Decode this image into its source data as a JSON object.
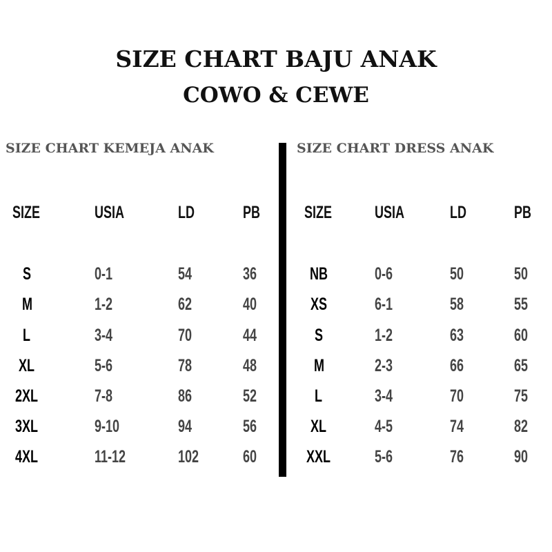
{
  "title_line1": "SIZE CHART BAJU ANAK",
  "title_line2": "COWO & CEWE",
  "tables": [
    {
      "title": "SIZE CHART KEMEJA ANAK",
      "headers": [
        "SIZE",
        "USIA",
        "LD",
        "PB"
      ],
      "rows": [
        [
          "S",
          "0-1",
          "54",
          "36"
        ],
        [
          "M",
          "1-2",
          "62",
          "40"
        ],
        [
          "L",
          "3-4",
          "70",
          "44"
        ],
        [
          "XL",
          "5-6",
          "78",
          "48"
        ],
        [
          "2XL",
          "7-8",
          "86",
          "52"
        ],
        [
          "3XL",
          "9-10",
          "94",
          "56"
        ],
        [
          "4XL",
          "11-12",
          "102",
          "60"
        ]
      ]
    },
    {
      "title": "SIZE CHART DRESS ANAK",
      "headers": [
        "SIZE",
        "USIA",
        "LD",
        "PB"
      ],
      "rows": [
        [
          "NB",
          "0-6",
          "50",
          "50"
        ],
        [
          "XS",
          "6-1",
          "58",
          "55"
        ],
        [
          "S",
          "1-2",
          "63",
          "60"
        ],
        [
          "M",
          "2-3",
          "66",
          "65"
        ],
        [
          "L",
          "3-4",
          "70",
          "75"
        ],
        [
          "XL",
          "4-5",
          "74",
          "82"
        ],
        [
          "XXL",
          "5-6",
          "76",
          "90"
        ]
      ]
    }
  ]
}
